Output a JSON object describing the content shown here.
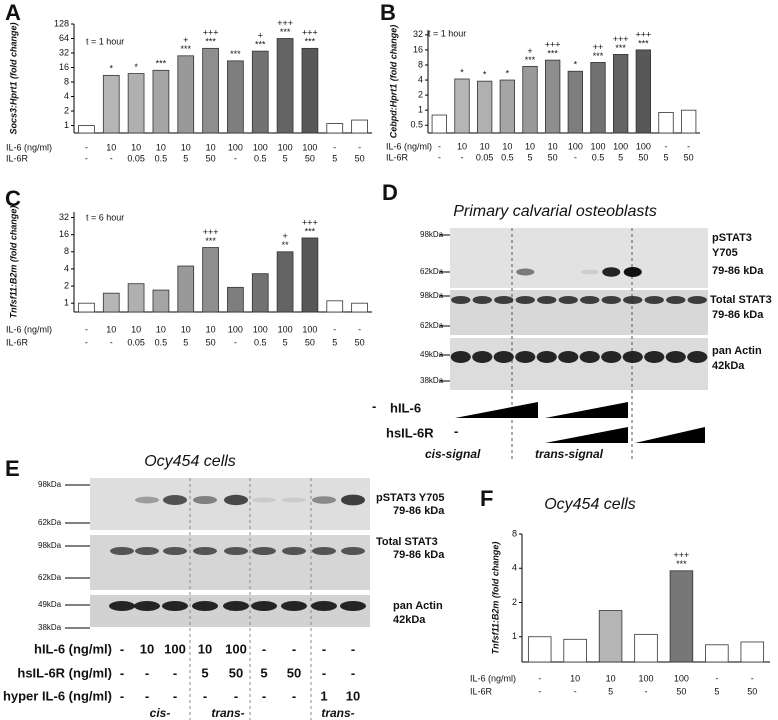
{
  "chart_data": [
    {
      "type": "bar",
      "panel": "A",
      "annotation": "t = 1 hour",
      "ylabel": "Socs3:Hprt1 (fold change)",
      "log_scale": true,
      "ylim": [
        0.7,
        128
      ],
      "yticks": [
        1,
        2,
        4,
        8,
        16,
        32,
        64,
        128
      ],
      "values": [
        1,
        11,
        12,
        14,
        28,
        40,
        22,
        35,
        64,
        40,
        1.1,
        1.3
      ],
      "colors": [
        "#ffffff",
        "#b5b5b5",
        "#b0b0b0",
        "#a5a5a5",
        "#999999",
        "#8e8e8e",
        "#7e7e7e",
        "#727272",
        "#646464",
        "#585858",
        "#ffffff",
        "#ffffff"
      ],
      "significance": [
        null,
        [
          "*"
        ],
        [
          "*"
        ],
        [
          "***"
        ],
        [
          "+",
          "***"
        ],
        [
          "+++",
          "***"
        ],
        [
          "***"
        ],
        [
          "+",
          "***"
        ],
        [
          "+++",
          "***"
        ],
        [
          "+++",
          "***"
        ],
        null,
        null
      ],
      "rows": [
        {
          "label": "IL-6 (ng/ml)",
          "values": [
            "-",
            "10",
            "10",
            "10",
            "10",
            "10",
            "100",
            "100",
            "100",
            "100",
            "-",
            "-"
          ]
        },
        {
          "label": "IL-6R",
          "values": [
            "-",
            "-",
            "0.05",
            "0.5",
            "5",
            "50",
            "-",
            "0.5",
            "5",
            "50",
            "5",
            "50"
          ]
        }
      ]
    },
    {
      "type": "bar",
      "panel": "B",
      "annotation": "t = 1 hour",
      "ylabel": "Cebpd:Hprt1 (fold change)",
      "log_scale": true,
      "ylim": [
        0.35,
        40
      ],
      "yticks": [
        0.5,
        1,
        2,
        4,
        8,
        16,
        32
      ],
      "values": [
        0.8,
        4.2,
        3.8,
        4,
        7.5,
        10,
        6,
        9,
        13,
        16,
        0.9,
        1
      ],
      "colors": [
        "#ffffff",
        "#b5b5b5",
        "#b0b0b0",
        "#a5a5a5",
        "#999999",
        "#8e8e8e",
        "#7e7e7e",
        "#727272",
        "#646464",
        "#585858",
        "#ffffff",
        "#ffffff"
      ],
      "significance": [
        null,
        [
          "*"
        ],
        [
          "*"
        ],
        [
          "*"
        ],
        [
          "+",
          "***"
        ],
        [
          "+++",
          "***"
        ],
        [
          "*"
        ],
        [
          "++",
          "***"
        ],
        [
          "+++",
          "***"
        ],
        [
          "+++",
          "***"
        ],
        null,
        null
      ],
      "rows": [
        {
          "label": "IL-6 (ng/ml)",
          "values": [
            "-",
            "10",
            "10",
            "10",
            "10",
            "10",
            "100",
            "100",
            "100",
            "100",
            "-",
            "-"
          ]
        },
        {
          "label": "IL-6R",
          "values": [
            "-",
            "-",
            "0.05",
            "0.5",
            "5",
            "50",
            "-",
            "0.5",
            "5",
            "50",
            "5",
            "50"
          ]
        }
      ]
    },
    {
      "type": "bar",
      "panel": "C",
      "annotation": "t = 6 hour",
      "ylabel": "Tnfsf11:B2m (fold change)",
      "log_scale": true,
      "ylim": [
        0.7,
        40
      ],
      "yticks": [
        1,
        2,
        4,
        8,
        16,
        32
      ],
      "values": [
        1,
        1.5,
        2.2,
        1.7,
        4.5,
        9.5,
        1.9,
        3.3,
        8,
        14,
        1.1,
        1
      ],
      "colors": [
        "#ffffff",
        "#b5b5b5",
        "#b0b0b0",
        "#a5a5a5",
        "#999999",
        "#8e8e8e",
        "#7e7e7e",
        "#727272",
        "#646464",
        "#585858",
        "#ffffff",
        "#ffffff"
      ],
      "significance": [
        null,
        null,
        null,
        null,
        null,
        [
          "+++",
          "***"
        ],
        null,
        null,
        [
          "+",
          "**"
        ],
        [
          "+++",
          "***"
        ],
        null,
        null
      ],
      "rows": [
        {
          "label": "IL-6 (ng/ml)",
          "values": [
            "-",
            "10",
            "10",
            "10",
            "10",
            "10",
            "100",
            "100",
            "100",
            "100",
            "-",
            "-"
          ]
        },
        {
          "label": "IL-6R",
          "values": [
            "-",
            "-",
            "0.05",
            "0.5",
            "5",
            "50",
            "-",
            "0.5",
            "5",
            "50",
            "5",
            "50"
          ]
        }
      ]
    },
    {
      "type": "bar",
      "panel": "F",
      "title": "Ocy454 cells",
      "ylabel": "Tnfsf11:B2m (fold change)",
      "log_scale": true,
      "ylim": [
        0.6,
        8
      ],
      "yticks": [
        1,
        2,
        4,
        8
      ],
      "values": [
        1,
        0.95,
        1.7,
        1.05,
        3.8,
        0.85,
        0.9
      ],
      "colors": [
        "#ffffff",
        "#ffffff",
        "#b5b5b5",
        "#ffffff",
        "#777777",
        "#ffffff",
        "#ffffff"
      ],
      "significance": [
        null,
        null,
        null,
        null,
        [
          "+++",
          "***"
        ],
        null,
        null
      ],
      "rows": [
        {
          "label": "IL-6 (ng/ml)",
          "values": [
            "-",
            "10",
            "10",
            "100",
            "100",
            "-",
            "-"
          ]
        },
        {
          "label": "IL-6R",
          "values": [
            "-",
            "-",
            "5",
            "-",
            "50",
            "5",
            "50"
          ]
        }
      ]
    }
  ],
  "blot_D": {
    "panel": "D",
    "title": "Primary calvarial osteoblasts",
    "markers": [
      "98kDa",
      "62kDa",
      "98kDa",
      "62kDa",
      "49kDa",
      "38kDa"
    ],
    "labels": [
      "pSTAT3",
      "Y705",
      "79-86 kDa",
      "Total STAT3",
      "79-86 kDa",
      "pan Actin",
      "42kDa"
    ],
    "treatments": [
      "hIL-6",
      "hsIL-6R"
    ],
    "dashes": [
      "-",
      "-"
    ],
    "groups": [
      "cis-signal",
      "trans-signal"
    ]
  },
  "blot_E": {
    "panel": "E",
    "title": "Ocy454 cells",
    "markers": [
      "98kDa",
      "62kDa",
      "98kDa",
      "62kDa",
      "49kDa",
      "38kDa"
    ],
    "labels": [
      "pSTAT3 Y705",
      "79-86 kDa",
      "Total STAT3",
      "79-86 kDa",
      "pan Actin",
      "42kDa"
    ],
    "rows": [
      {
        "label": "hIL-6 (ng/ml)",
        "values": [
          "-",
          "10",
          "100",
          "10",
          "100",
          "-",
          "-",
          "-",
          "-"
        ]
      },
      {
        "label": "hsIL-6R (ng/ml)",
        "values": [
          "-",
          "-",
          "-",
          "5",
          "50",
          "5",
          "50",
          "-",
          "-"
        ]
      },
      {
        "label": "hyper IL-6 (ng/ml)",
        "values": [
          "-",
          "-",
          "-",
          "-",
          "-",
          "-",
          "-",
          "1",
          "10"
        ]
      }
    ],
    "groups": [
      "cis-",
      "trans-",
      "trans-"
    ]
  }
}
